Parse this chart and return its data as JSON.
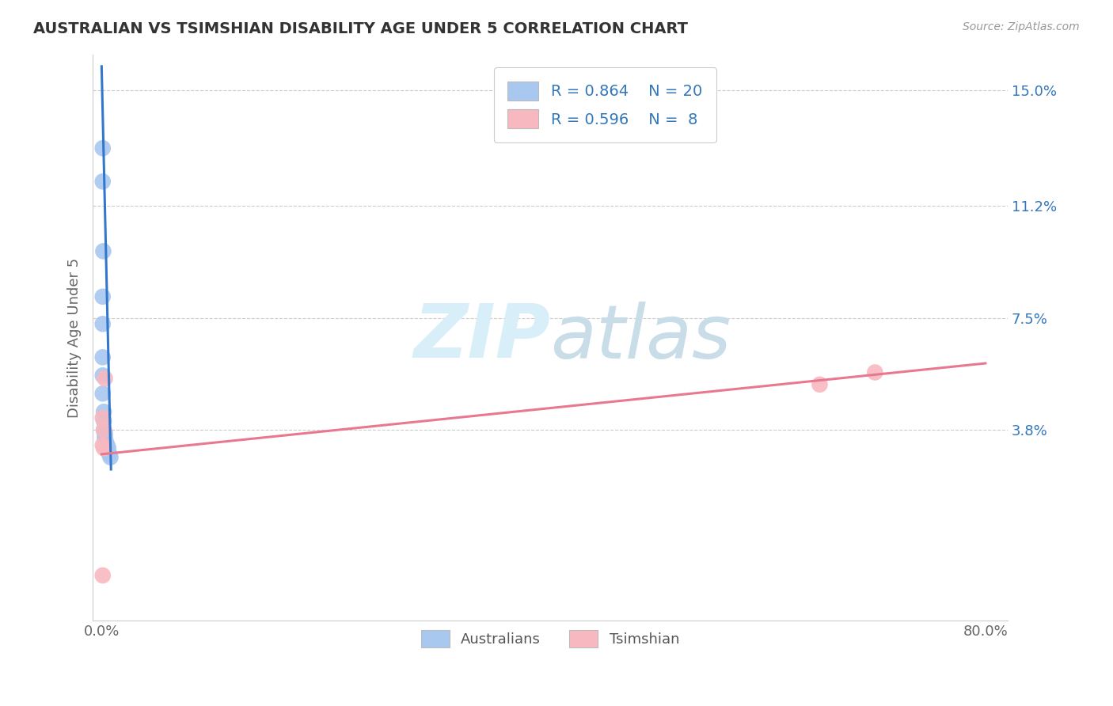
{
  "title": "AUSTRALIAN VS TSIMSHIAN DISABILITY AGE UNDER 5 CORRELATION CHART",
  "source": "Source: ZipAtlas.com",
  "ylabel": "Disability Age Under 5",
  "xlim": [
    -0.008,
    0.82
  ],
  "ylim": [
    -0.025,
    0.162
  ],
  "yticks": [
    0.038,
    0.075,
    0.112,
    0.15
  ],
  "ytick_labels": [
    "3.8%",
    "7.5%",
    "11.2%",
    "15.0%"
  ],
  "xticks": [
    0.0,
    0.8
  ],
  "xtick_labels": [
    "0.0%",
    "80.0%"
  ],
  "australian_color": "#a8c8f0",
  "tsimshian_color": "#f8b8c0",
  "line_australian_color": "#3377cc",
  "line_tsimshian_color": "#e87890",
  "watermark_color": "#d8eef8",
  "australian_x": [
    0.001,
    0.001,
    0.0015,
    0.001,
    0.001,
    0.001,
    0.001,
    0.001,
    0.002,
    0.002,
    0.002,
    0.003,
    0.003,
    0.003,
    0.004,
    0.004,
    0.005,
    0.006,
    0.007,
    0.008
  ],
  "australian_y": [
    0.131,
    0.12,
    0.097,
    0.082,
    0.073,
    0.062,
    0.056,
    0.05,
    0.044,
    0.041,
    0.038,
    0.037,
    0.036,
    0.035,
    0.034,
    0.033,
    0.033,
    0.032,
    0.03,
    0.029
  ],
  "tsimshian_x": [
    0.001,
    0.001,
    0.001,
    0.002,
    0.002,
    0.003,
    0.65,
    0.7
  ],
  "tsimshian_y": [
    0.042,
    0.033,
    -0.01,
    0.038,
    0.032,
    0.055,
    0.053,
    0.057
  ],
  "aus_line_x": [
    0.0,
    0.0085
  ],
  "aus_line_y": [
    0.158,
    0.025
  ],
  "tsim_line_x": [
    0.0,
    0.8
  ],
  "tsim_line_y": [
    0.03,
    0.06
  ],
  "legend1_label": "R = 0.864    N = 20",
  "legend2_label": "R = 0.596    N =  8",
  "label_color": "#3377bb",
  "title_color": "#333333",
  "grid_color": "#cccccc",
  "spine_color": "#cccccc",
  "tick_color": "#666666",
  "ylabel_color": "#666666"
}
